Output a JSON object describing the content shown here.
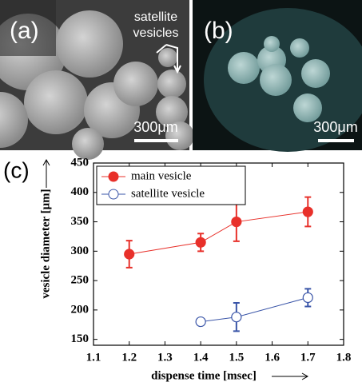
{
  "panels": [
    {
      "label": "(a)",
      "annotation": [
        "satellite",
        "vesicles"
      ],
      "scale": "300μm"
    },
    {
      "label": "(b)",
      "scale": "300μm"
    },
    {
      "label": "(c)"
    }
  ],
  "chart_data": {
    "type": "errorline",
    "xlabel": "dispense time [msec]",
    "ylabel": "vesicle diameter [μm]",
    "xlim": [
      1.1,
      1.8
    ],
    "xticks": [
      1.1,
      1.2,
      1.3,
      1.4,
      1.5,
      1.6,
      1.7,
      1.8
    ],
    "ylim": [
      140,
      450
    ],
    "yticks": [
      150,
      200,
      250,
      300,
      350,
      400,
      450
    ],
    "legend": "upper left",
    "series": [
      {
        "name": "main vesicle",
        "color": "#e8302a",
        "marker": "filled",
        "x": [
          1.2,
          1.4,
          1.5,
          1.7
        ],
        "values": [
          295,
          315,
          350,
          367
        ],
        "errors": [
          23,
          15,
          33,
          25
        ]
      },
      {
        "name": "satellite vesicle",
        "color": "#3a55a8",
        "marker": "open",
        "x": [
          1.4,
          1.5,
          1.7
        ],
        "values": [
          180,
          188,
          221
        ],
        "errors": [
          4,
          24,
          15
        ]
      }
    ]
  }
}
